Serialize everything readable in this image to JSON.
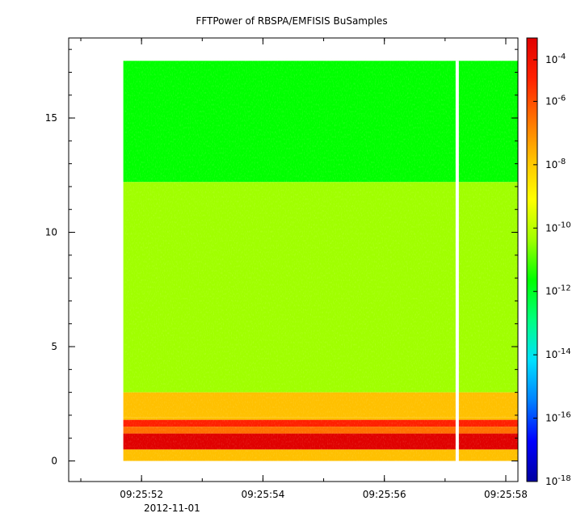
{
  "chart_data": {
    "type": "heatmap",
    "title": "FFTPower of RBSPA/EMFISIS  BuSamples",
    "xlabel": "",
    "ylabel": "",
    "x_ticks": [
      "09:25:52",
      "09:25:54",
      "09:25:56",
      "09:25:58"
    ],
    "x_date_label": "2012-11-01",
    "x_range_seconds": [
      "09:25:50.8",
      "09:25:58.2"
    ],
    "data_time_range": [
      "09:25:51.7",
      "09:25:58.2"
    ],
    "gap_time": "09:25:57.2",
    "y_ticks": [
      0,
      5,
      10,
      15
    ],
    "ylim": [
      -0.9,
      18.5
    ],
    "frequency_max": 17.5,
    "z_scale": "log",
    "zlim": [
      1e-18,
      0.0001
    ],
    "colorbar_ticks": [
      "10-4",
      "10-6",
      "10-8",
      "10-10",
      "10-12",
      "10-14",
      "10-16",
      "10-18"
    ],
    "colormap": [
      "#0000a0",
      "#0000ff",
      "#0080ff",
      "#00e0ff",
      "#00ff80",
      "#00ff00",
      "#a0ff00",
      "#ffff00",
      "#ffc000",
      "#ff7000",
      "#ff2000",
      "#e00000"
    ],
    "bands": [
      {
        "freq_range": [
          12.2,
          17.5
        ],
        "power": 1e-12
      },
      {
        "freq_range": [
          3.0,
          12.2
        ],
        "power": 1e-10
      },
      {
        "freq_range": [
          1.9,
          3.0
        ],
        "power": 1e-08
      },
      {
        "freq_range": [
          1.5,
          1.8
        ],
        "power": 1e-05
      },
      {
        "freq_range": [
          0.5,
          1.2
        ],
        "power": 0.0001
      },
      {
        "freq_range": [
          0.0,
          0.5
        ],
        "power": 1e-08
      }
    ],
    "grid": false
  }
}
